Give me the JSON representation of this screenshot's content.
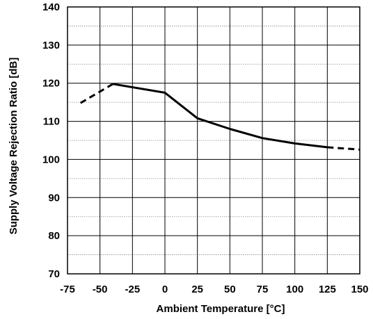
{
  "chart_data": {
    "type": "line",
    "title": "",
    "xlabel": "Ambient Temperature [°C]",
    "ylabel": "Supply Voltage Rejection Ratio [dB]",
    "xlim": [
      -75,
      150
    ],
    "ylim": [
      70,
      140
    ],
    "x_ticks": [
      -75,
      -50,
      -25,
      0,
      25,
      50,
      75,
      100,
      125,
      150
    ],
    "y_ticks": [
      70,
      80,
      90,
      100,
      110,
      120,
      130,
      140
    ],
    "x_tick_labels": [
      "-75",
      "-50",
      "-25",
      "0",
      "25",
      "50",
      "75",
      "100",
      "125",
      "150"
    ],
    "y_tick_labels": [
      "70",
      "80",
      "90",
      "100",
      "110",
      "120",
      "130",
      "140"
    ],
    "grid": true,
    "minor_grid_y": true,
    "series": [
      {
        "style": "solid",
        "color": "#000000",
        "x": [
          -40,
          0,
          25,
          50,
          75,
          100,
          125
        ],
        "y": [
          119.8,
          117.5,
          110.8,
          108.0,
          105.6,
          104.2,
          103.2
        ]
      },
      {
        "style": "dashed",
        "color": "#000000",
        "x": [
          -65,
          -40
        ],
        "y": [
          114.8,
          119.8
        ]
      },
      {
        "style": "dashed",
        "color": "#000000",
        "x": [
          125,
          150
        ],
        "y": [
          103.2,
          102.6
        ]
      }
    ]
  }
}
